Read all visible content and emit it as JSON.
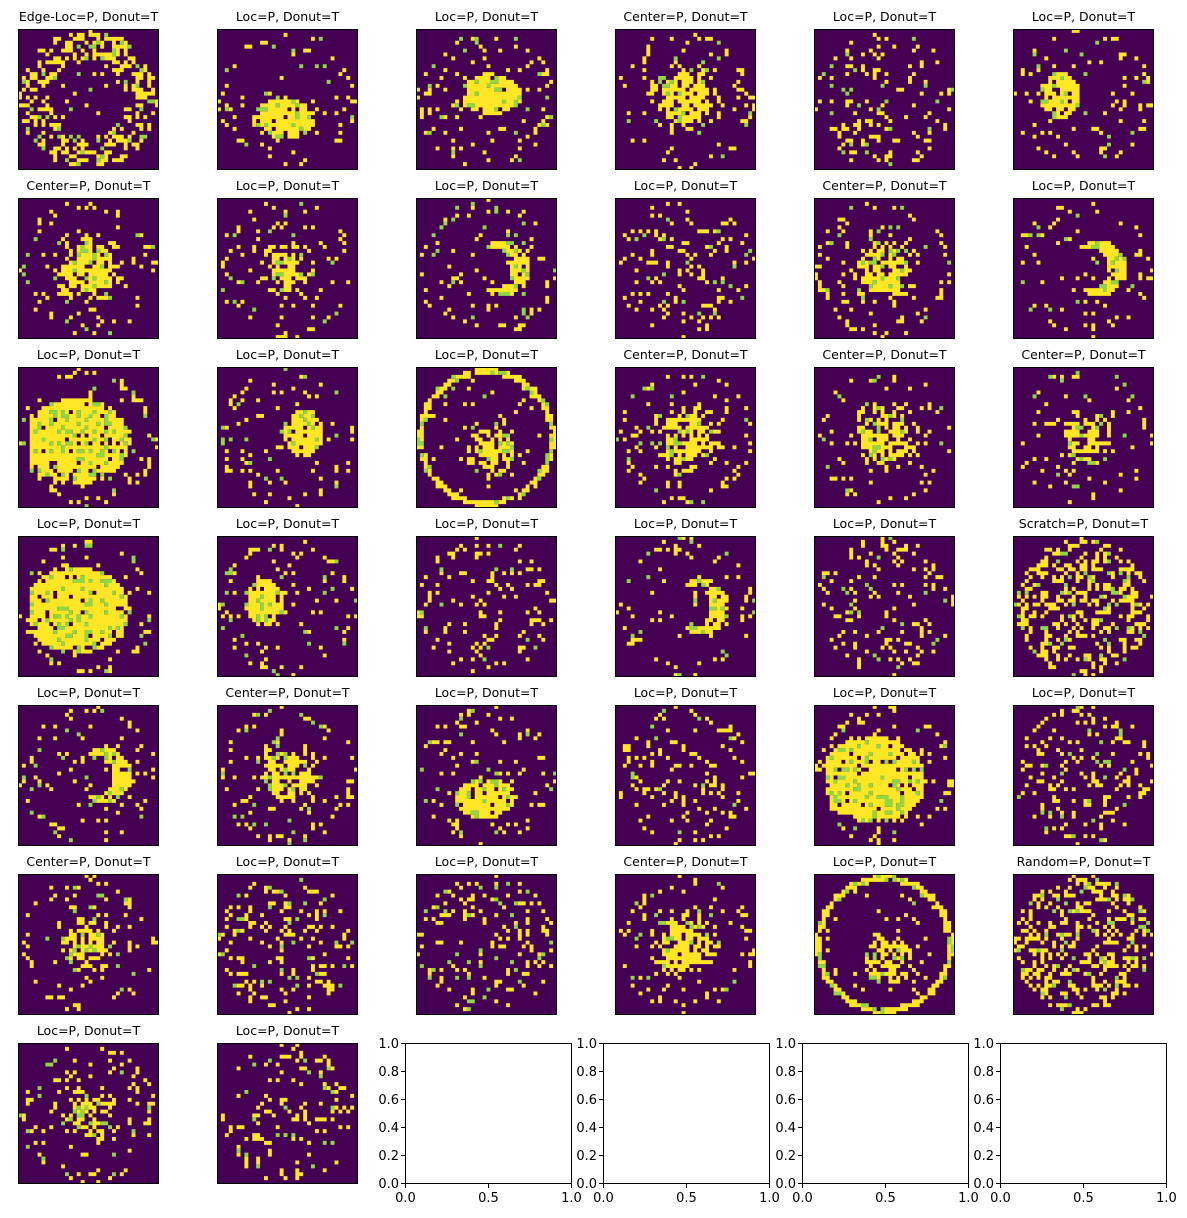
{
  "chart_data": {
    "type": "heatmap",
    "description_note": "",
    "colors": {
      "background": "#440154",
      "defect": "#fde725",
      "mid": "#90d743",
      "axes_border": "#000000"
    },
    "panels": [
      {
        "title": "Edge-Loc=P, Donut=T",
        "pattern": "edge"
      },
      {
        "title": "Loc=P, Donut=T",
        "pattern": "loc-center"
      },
      {
        "title": "Loc=P, Donut=T",
        "pattern": "loc-blob"
      },
      {
        "title": "Center=P, Donut=T",
        "pattern": "center"
      },
      {
        "title": "Loc=P, Donut=T",
        "pattern": "sparse"
      },
      {
        "title": "Loc=P, Donut=T",
        "pattern": "loc-left"
      },
      {
        "title": "Center=P, Donut=T",
        "pattern": "center"
      },
      {
        "title": "Loc=P, Donut=T",
        "pattern": "center-small"
      },
      {
        "title": "Loc=P, Donut=T",
        "pattern": "crescent"
      },
      {
        "title": "Loc=P, Donut=T",
        "pattern": "sparse"
      },
      {
        "title": "Center=P, Donut=T",
        "pattern": "center"
      },
      {
        "title": "Loc=P, Donut=T",
        "pattern": "crescent"
      },
      {
        "title": "Loc=P, Donut=T",
        "pattern": "big-blob"
      },
      {
        "title": "Loc=P, Donut=T",
        "pattern": "loc-right"
      },
      {
        "title": "Loc=P, Donut=T",
        "pattern": "ring-fine"
      },
      {
        "title": "Center=P, Donut=T",
        "pattern": "center"
      },
      {
        "title": "Center=P, Donut=T",
        "pattern": "center"
      },
      {
        "title": "Center=P, Donut=T",
        "pattern": "center-small"
      },
      {
        "title": "Loc=P, Donut=T",
        "pattern": "big-blob"
      },
      {
        "title": "Loc=P, Donut=T",
        "pattern": "loc-left"
      },
      {
        "title": "Loc=P, Donut=T",
        "pattern": "sparse"
      },
      {
        "title": "Loc=P, Donut=T",
        "pattern": "crescent"
      },
      {
        "title": "Loc=P, Donut=T",
        "pattern": "sparse"
      },
      {
        "title": "Scratch=P, Donut=T",
        "pattern": "dense-random"
      },
      {
        "title": "Loc=P, Donut=T",
        "pattern": "crescent"
      },
      {
        "title": "Center=P, Donut=T",
        "pattern": "center"
      },
      {
        "title": "Loc=P, Donut=T",
        "pattern": "loc-blob"
      },
      {
        "title": "Loc=P, Donut=T",
        "pattern": "sparse"
      },
      {
        "title": "Loc=P, Donut=T",
        "pattern": "big-blob"
      },
      {
        "title": "Loc=P, Donut=T",
        "pattern": "sparse"
      },
      {
        "title": "Center=P, Donut=T",
        "pattern": "center-small"
      },
      {
        "title": "Loc=P, Donut=T",
        "pattern": "sparse"
      },
      {
        "title": "Loc=P, Donut=T",
        "pattern": "sparse"
      },
      {
        "title": "Center=P, Donut=T",
        "pattern": "center"
      },
      {
        "title": "Loc=P, Donut=T",
        "pattern": "ring-fine"
      },
      {
        "title": "Random=P, Donut=T",
        "pattern": "dense-random"
      },
      {
        "title": "Loc=P, Donut=T",
        "pattern": "center-small"
      },
      {
        "title": "Loc=P, Donut=T",
        "pattern": "sparse"
      }
    ],
    "empty_axes": {
      "count": 4,
      "xlim": [
        0.0,
        1.0
      ],
      "ylim": [
        0.0,
        1.0
      ],
      "xticks": [
        "0.0",
        "0.5",
        "1.0"
      ],
      "yticks": [
        "0.0",
        "0.2",
        "0.4",
        "0.6",
        "0.8",
        "1.0"
      ]
    }
  }
}
